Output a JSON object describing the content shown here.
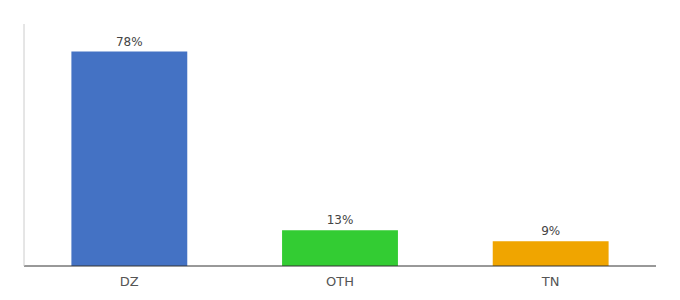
{
  "chart_data": {
    "type": "bar",
    "categories": [
      "DZ",
      "OTH",
      "TN"
    ],
    "values": [
      78,
      13,
      9
    ],
    "value_labels": [
      "78%",
      "13%",
      "9%"
    ],
    "colors": [
      "#4472c4",
      "#33cc33",
      "#f0a500"
    ],
    "ylim": [
      0,
      88
    ],
    "data_labels": true,
    "tick_labels": "x",
    "grid": false
  }
}
